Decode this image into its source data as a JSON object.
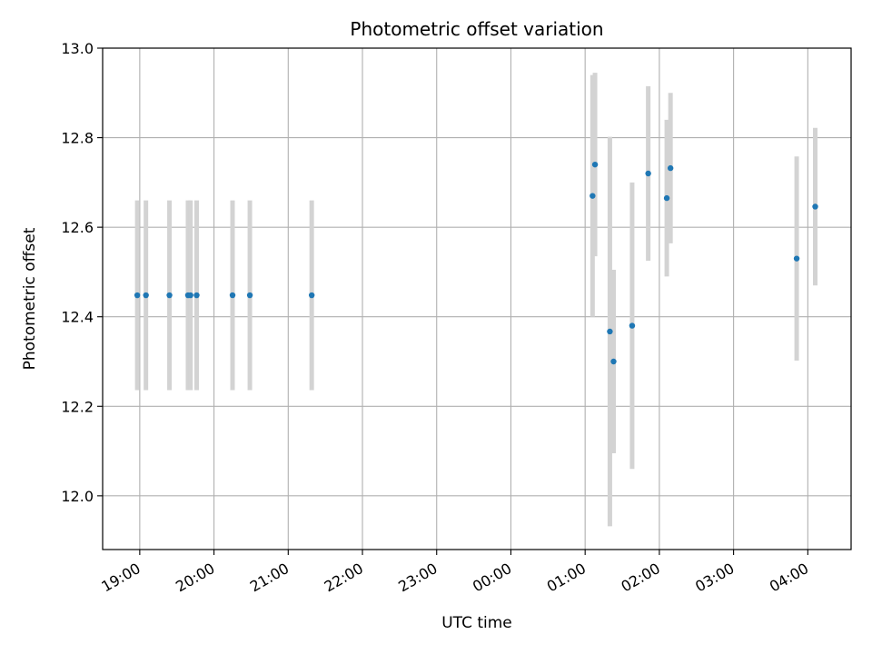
{
  "chart_data": {
    "type": "scatter",
    "title": "Photometric offset variation",
    "xlabel": "UTC time",
    "ylabel": "Photometric offset",
    "grid": true,
    "xlim": [
      "18:30",
      "04:35"
    ],
    "ylim": [
      11.88,
      13.0
    ],
    "x_ticks": [
      "19:00",
      "20:00",
      "21:00",
      "22:00",
      "23:00",
      "00:00",
      "01:00",
      "02:00",
      "03:00",
      "04:00"
    ],
    "y_ticks": [
      "12.0",
      "12.2",
      "12.4",
      "12.6",
      "12.8",
      "13.0"
    ],
    "marker_color": "#1f77b4",
    "errorbar_color": "#d3d3d3",
    "points": [
      {
        "x": "18:58",
        "y": 12.448,
        "err": 0.212
      },
      {
        "x": "19:05",
        "y": 12.448,
        "err": 0.212
      },
      {
        "x": "19:24",
        "y": 12.448,
        "err": 0.212
      },
      {
        "x": "19:39",
        "y": 12.448,
        "err": 0.212
      },
      {
        "x": "19:41",
        "y": 12.448,
        "err": 0.212
      },
      {
        "x": "19:46",
        "y": 12.448,
        "err": 0.212
      },
      {
        "x": "20:15",
        "y": 12.448,
        "err": 0.212
      },
      {
        "x": "20:29",
        "y": 12.448,
        "err": 0.212
      },
      {
        "x": "21:19",
        "y": 12.448,
        "err": 0.212
      },
      {
        "x": "01:06",
        "y": 12.67,
        "err": 0.27
      },
      {
        "x": "01:08",
        "y": 12.74,
        "err": 0.205
      },
      {
        "x": "01:20",
        "y": 12.367,
        "err": 0.435
      },
      {
        "x": "01:23",
        "y": 12.3,
        "err": 0.205
      },
      {
        "x": "01:38",
        "y": 12.38,
        "err": 0.32
      },
      {
        "x": "01:51",
        "y": 12.72,
        "err": 0.195
      },
      {
        "x": "02:06",
        "y": 12.665,
        "err": 0.175
      },
      {
        "x": "02:09",
        "y": 12.732,
        "err": 0.168
      },
      {
        "x": "03:51",
        "y": 12.53,
        "err": 0.228
      },
      {
        "x": "04:06",
        "y": 12.646,
        "err": 0.176
      }
    ]
  }
}
